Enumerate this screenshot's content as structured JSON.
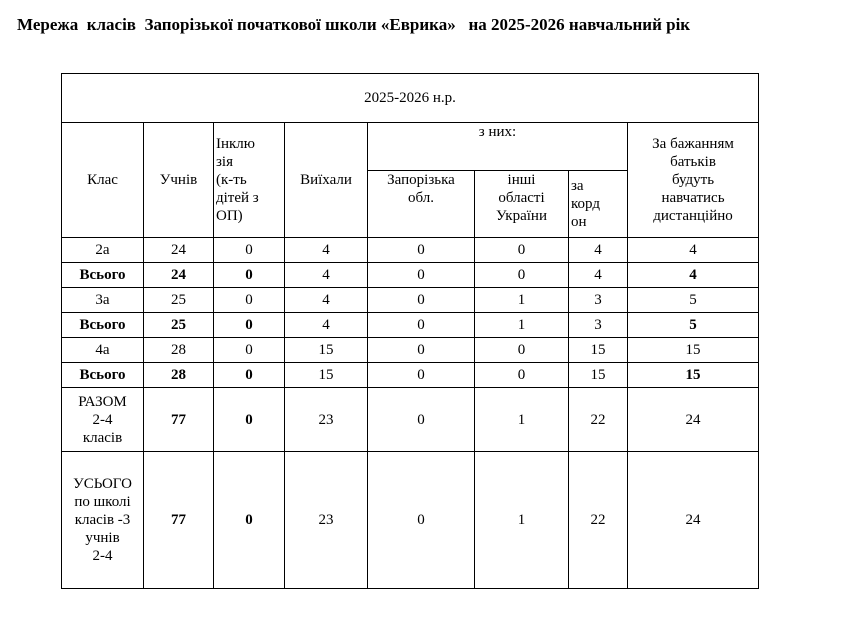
{
  "title": "Мережа  класів  Запорізької початкової школи «Еврика»   на 2025-2026 навчальний рік",
  "year_header": "2025-2026 н.р.",
  "headers": {
    "klas": "Клас",
    "uchniv": "Учнів",
    "inkl_lines": [
      "Інклю",
      "зія",
      "(к-ть",
      "дітей з",
      "ОП)"
    ],
    "viyikhaly": "Виїхали",
    "z_nykh": "з них:",
    "zap_lines": [
      "Запорізька",
      "обл."
    ],
    "inshi_lines": [
      "інші",
      "області",
      "України"
    ],
    "kordon_lines": [
      "за",
      "корд",
      "он"
    ],
    "bazh_lines": [
      "За бажанням",
      "батьків",
      "будуть",
      "навчатись",
      "дистанційно"
    ]
  },
  "rows": [
    {
      "cls": "2а",
      "uchniv": "24",
      "inkl": "0",
      "viyikh": "4",
      "zap": "0",
      "inshi": "0",
      "kordon": "4",
      "bazh": "4",
      "bold": false
    },
    {
      "cls": "Всього",
      "uchniv": "24",
      "inkl": "0",
      "viyikh": "4",
      "zap": "0",
      "inshi": "0",
      "kordon": "4",
      "bazh": "4",
      "bold": true
    },
    {
      "cls": "3а",
      "uchniv": "25",
      "inkl": "0",
      "viyikh": "4",
      "zap": "0",
      "inshi": "1",
      "kordon": "3",
      "bazh": "5",
      "bold": false
    },
    {
      "cls": "Всього",
      "uchniv": "25",
      "inkl": "0",
      "viyikh": "4",
      "zap": "0",
      "inshi": "1",
      "kordon": "3",
      "bazh": "5",
      "bold": true
    },
    {
      "cls": "4а",
      "uchniv": "28",
      "inkl": "0",
      "viyikh": "15",
      "zap": "0",
      "inshi": "0",
      "kordon": "15",
      "bazh": "15",
      "bold": false
    },
    {
      "cls": "Всього",
      "uchniv": "28",
      "inkl": "0",
      "viyikh": "15",
      "zap": "0",
      "inshi": "0",
      "kordon": "15",
      "bazh": "15",
      "bold": true
    }
  ],
  "razom": {
    "lines": [
      "РАЗОМ",
      "2-4",
      "класів"
    ],
    "uchniv": "77",
    "inkl": "0",
    "viyikh": "23",
    "zap": "0",
    "inshi": "1",
    "kordon": "22",
    "bazh": "24"
  },
  "usogo": {
    "lines": [
      "УСЬОГО",
      "по школі",
      "класів -3",
      "учнів",
      "2-4"
    ],
    "uchniv": "77",
    "inkl": "0",
    "viyikh": "23",
    "zap": "0",
    "inshi": "1",
    "kordon": "22",
    "bazh": "24"
  }
}
